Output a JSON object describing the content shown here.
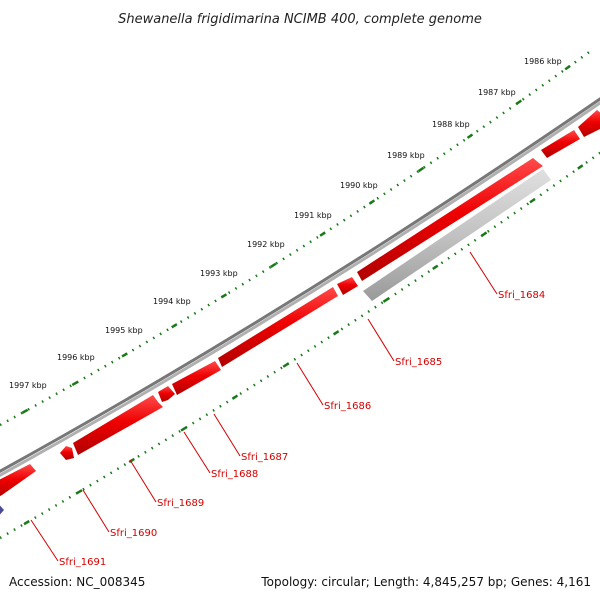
{
  "title": "Shewanella frigidimarina NCIMB 400, complete genome",
  "footer": {
    "accession": "Accession: NC_008345",
    "topology": "Topology: circular; Length: 4,845,257 bp; Genes: 4,161"
  },
  "scale_ticks": [
    "1986 kbp",
    "1987 kbp",
    "1988 kbp",
    "1989 kbp",
    "1990 kbp",
    "1991 kbp",
    "1992 kbp",
    "1993 kbp",
    "1994 kbp",
    "1995 kbp",
    "1996 kbp",
    "1997 kbp"
  ],
  "gene_labels": [
    "Sfri_1684",
    "Sfri_1685",
    "Sfri_1686",
    "Sfri_1687",
    "Sfri_1688",
    "Sfri_1689",
    "Sfri_1690",
    "Sfri_1691"
  ],
  "colors": {
    "forward_gene": "#ee0000",
    "reverse_gene": "#bbbbbb",
    "backbone": "#777777",
    "tick": "#1a7a1a",
    "label": "#d40000",
    "partial_gene": "#4a4a9a"
  }
}
